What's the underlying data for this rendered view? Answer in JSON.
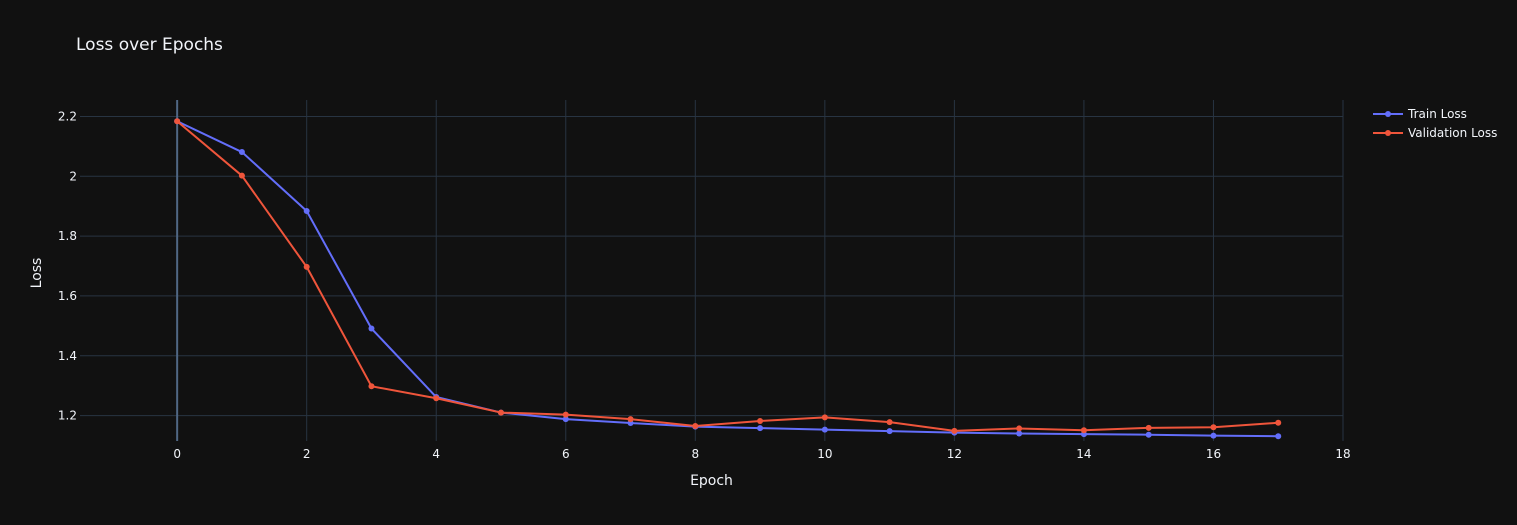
{
  "chart_data": {
    "type": "line",
    "title": "Loss over Epochs",
    "xlabel": "Epoch",
    "ylabel": "Loss",
    "xlim": [
      -1.5,
      18
    ],
    "ylim": [
      1.115,
      2.255
    ],
    "x_ticks": [
      0,
      2,
      4,
      6,
      8,
      10,
      12,
      14,
      16,
      18
    ],
    "y_ticks": [
      1.2,
      1.4,
      1.6,
      1.8,
      2,
      2.2
    ],
    "x_tick_labels": [
      "0",
      "2",
      "4",
      "6",
      "8",
      "10",
      "12",
      "14",
      "16",
      "18"
    ],
    "y_tick_labels": [
      "1.2",
      "1.4",
      "1.6",
      "1.8",
      "2",
      "2.2"
    ],
    "grid": true,
    "legend_position": "top-right",
    "x": [
      0,
      1,
      2,
      3,
      4,
      5,
      6,
      7,
      8,
      9,
      10,
      11,
      12,
      13,
      14,
      15,
      16,
      17
    ],
    "series": [
      {
        "name": "Train Loss",
        "color": "#636efa",
        "values": [
          2.184,
          2.081,
          1.884,
          1.491,
          1.262,
          1.21,
          1.188,
          1.175,
          1.163,
          1.158,
          1.153,
          1.148,
          1.143,
          1.14,
          1.138,
          1.136,
          1.133,
          1.131
        ]
      },
      {
        "name": "Validation Loss",
        "color": "#ef553b",
        "values": [
          2.184,
          2.002,
          1.697,
          1.298,
          1.258,
          1.21,
          1.203,
          1.188,
          1.165,
          1.182,
          1.194,
          1.178,
          1.149,
          1.157,
          1.151,
          1.159,
          1.161,
          1.176
        ]
      }
    ]
  }
}
